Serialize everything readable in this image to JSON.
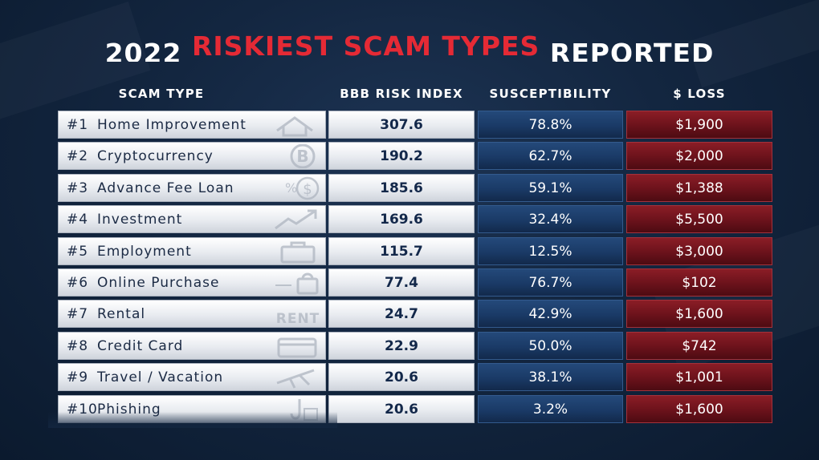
{
  "title": {
    "year": "2022",
    "highlight": "RISKIEST SCAM TYPES",
    "tail": "REPORTED"
  },
  "headers": {
    "scam_type": "SCAM TYPE",
    "risk_index": "BBB RISK INDEX",
    "susceptibility": "SUSCEPTIBILITY",
    "loss": "$ LOSS"
  },
  "colors": {
    "title_accent": "#e52a35",
    "susceptibility_column": "#1a3a66",
    "loss_column": "#6b121b",
    "light_cells": "#e8ebf0"
  },
  "rows": [
    {
      "rank": "#1",
      "name": "Home Improvement",
      "risk_index": "307.6",
      "susceptibility": "78.8%",
      "loss": "$1,900",
      "icon": "house-icon"
    },
    {
      "rank": "#2",
      "name": "Cryptocurrency",
      "risk_index": "190.2",
      "susceptibility": "62.7%",
      "loss": "$2,000",
      "icon": "bitcoin-icon"
    },
    {
      "rank": "#3",
      "name": "Advance Fee Loan",
      "risk_index": "185.6",
      "susceptibility": "59.1%",
      "loss": "$1,388",
      "icon": "money-icon"
    },
    {
      "rank": "#4",
      "name": "Investment",
      "risk_index": "169.6",
      "susceptibility": "32.4%",
      "loss": "$5,500",
      "icon": "trend-up-icon"
    },
    {
      "rank": "#5",
      "name": "Employment",
      "risk_index": "115.7",
      "susceptibility": "12.5%",
      "loss": "$3,000",
      "icon": "briefcase-icon"
    },
    {
      "rank": "#6",
      "name": "Online Purchase",
      "risk_index": "77.4",
      "susceptibility": "76.7%",
      "loss": "$102",
      "icon": "shopping-bag-icon"
    },
    {
      "rank": "#7",
      "name": "Rental",
      "risk_index": "24.7",
      "susceptibility": "42.9%",
      "loss": "$1,600",
      "icon": "rent-sign-icon",
      "icon_text": "RENT"
    },
    {
      "rank": "#8",
      "name": "Credit Card",
      "risk_index": "22.9",
      "susceptibility": "50.0%",
      "loss": "$742",
      "icon": "credit-card-icon"
    },
    {
      "rank": "#9",
      "name": "Travel / Vacation",
      "risk_index": "20.6",
      "susceptibility": "38.1%",
      "loss": "$1,001",
      "icon": "airplane-icon"
    },
    {
      "rank": "#10",
      "name": "Phishing",
      "risk_index": "20.6",
      "susceptibility": "3.2%",
      "loss": "$1,600",
      "icon": "fishhook-icon"
    }
  ],
  "chart_data": {
    "type": "table",
    "title": "2022 RISKIEST SCAM TYPES REPORTED",
    "columns": [
      "SCAM TYPE",
      "BBB RISK INDEX",
      "SUSCEPTIBILITY",
      "$ LOSS"
    ],
    "rows": [
      [
        "#1 Home Improvement",
        307.6,
        "78.8%",
        "$1,900"
      ],
      [
        "#2 Cryptocurrency",
        190.2,
        "62.7%",
        "$2,000"
      ],
      [
        "#3 Advance Fee Loan",
        185.6,
        "59.1%",
        "$1,388"
      ],
      [
        "#4 Investment",
        169.6,
        "32.4%",
        "$5,500"
      ],
      [
        "#5 Employment",
        115.7,
        "12.5%",
        "$3,000"
      ],
      [
        "#6 Online Purchase",
        77.4,
        "76.7%",
        "$102"
      ],
      [
        "#7 Rental",
        24.7,
        "42.9%",
        "$1,600"
      ],
      [
        "#8 Credit Card",
        22.9,
        "50.0%",
        "$742"
      ],
      [
        "#9 Travel / Vacation",
        20.6,
        "38.1%",
        "$1,001"
      ],
      [
        "#10 Phishing",
        20.6,
        "3.2%",
        "$1,600"
      ]
    ]
  }
}
